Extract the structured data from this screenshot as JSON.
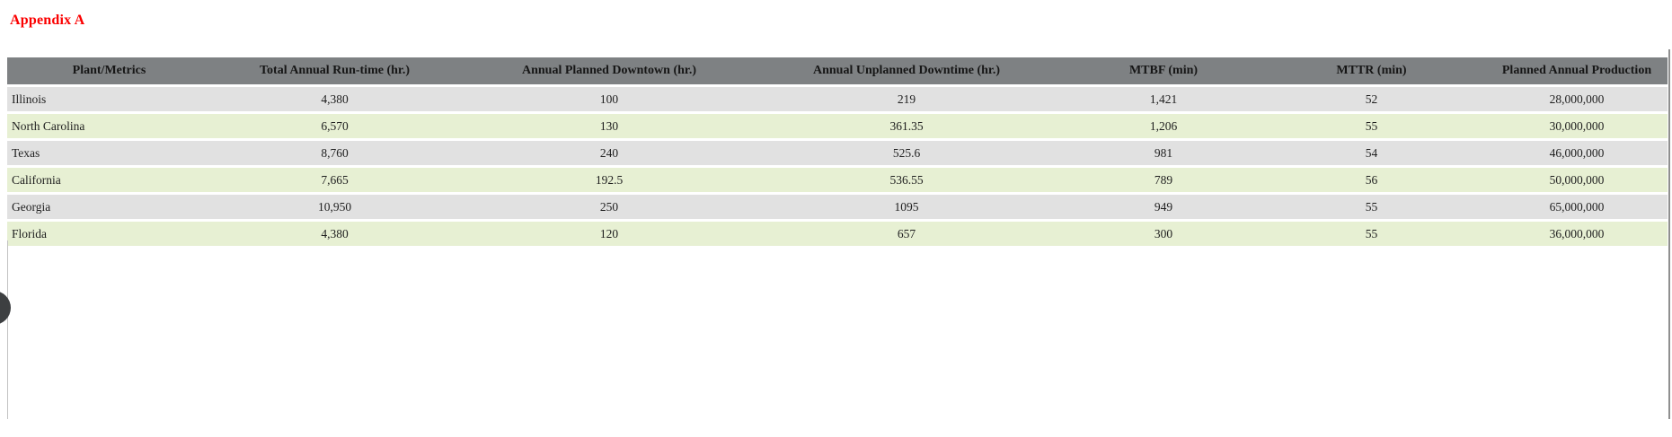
{
  "title": {
    "text": "Appendix A",
    "color": "#fb0000"
  },
  "table": {
    "columns": [
      {
        "label": "Plant/Metrics"
      },
      {
        "label": "Total Annual Run-time (hr.)"
      },
      {
        "label": "Annual Planned Downtown (hr.)"
      },
      {
        "label": "Annual Unplanned Downtime (hr.)"
      },
      {
        "label": "MTBF (min)"
      },
      {
        "label": "MTTR (min)"
      },
      {
        "label": "Planned Annual Production"
      }
    ],
    "rows": [
      {
        "plant": "Illinois",
        "values": [
          "4,380",
          "100",
          "219",
          "1,421",
          "52",
          "28,000,000"
        ]
      },
      {
        "plant": "North Carolina",
        "values": [
          "6,570",
          "130",
          "361.35",
          "1,206",
          "55",
          "30,000,000"
        ]
      },
      {
        "plant": "Texas",
        "values": [
          "8,760",
          "240",
          "525.6",
          "981",
          "54",
          "46,000,000"
        ]
      },
      {
        "plant": "California",
        "values": [
          "7,665",
          "192.5",
          "536.55",
          "789",
          "56",
          "50,000,000"
        ]
      },
      {
        "plant": "Georgia",
        "values": [
          "10,950",
          "250",
          "1095",
          "949",
          "55",
          "65,000,000"
        ]
      },
      {
        "plant": "Florida",
        "values": [
          "4,380",
          "120",
          "657",
          "300",
          "55",
          "36,000,000"
        ]
      }
    ],
    "colors": {
      "header_bg": "#7e8183",
      "header_text": "#161616",
      "row_gray": "#e1e1e1",
      "row_green": "#e7f0d3",
      "body_text": "#1f1f1f"
    }
  },
  "chart_data": {
    "type": "table",
    "title": "Appendix A",
    "categories": [
      "Illinois",
      "North Carolina",
      "Texas",
      "California",
      "Georgia",
      "Florida"
    ],
    "series": [
      {
        "name": "Total Annual Run-time (hr.)",
        "values": [
          4380,
          6570,
          8760,
          7665,
          10950,
          4380
        ]
      },
      {
        "name": "Annual Planned Downtown (hr.)",
        "values": [
          100,
          130,
          240,
          192.5,
          250,
          120
        ]
      },
      {
        "name": "Annual Unplanned Downtime (hr.)",
        "values": [
          219,
          361.35,
          525.6,
          536.55,
          1095,
          657
        ]
      },
      {
        "name": "MTBF (min)",
        "values": [
          1421,
          1206,
          981,
          789,
          949,
          300
        ]
      },
      {
        "name": "MTTR (min)",
        "values": [
          52,
          55,
          54,
          56,
          55,
          55
        ]
      },
      {
        "name": "Planned Annual Production",
        "values": [
          28000000,
          30000000,
          46000000,
          50000000,
          65000000,
          36000000
        ]
      }
    ]
  }
}
